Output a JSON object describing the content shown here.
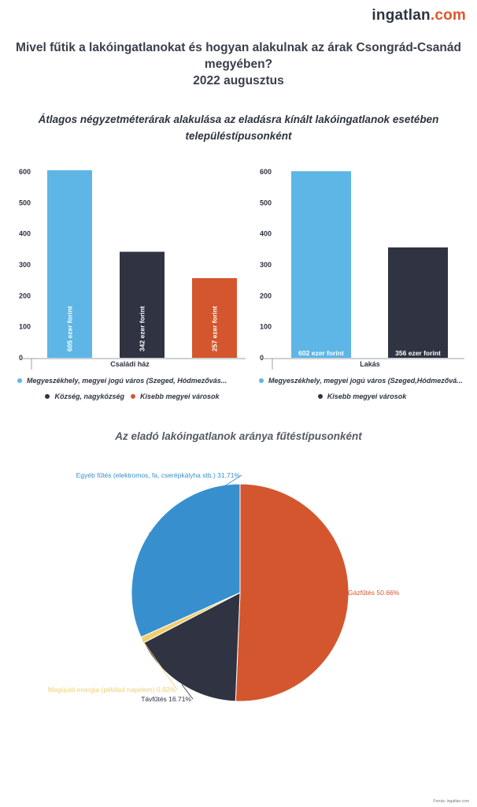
{
  "logo": {
    "part1": "ingatlan",
    "part2": ".com"
  },
  "header": {
    "title_line1": "Mivel fűtik a lakóingatlanokat és hogyan alakulnak az árak Csongrád-Csanád",
    "title_line2": "megyében?",
    "title_line3": "2022 augusztus"
  },
  "bar_section": {
    "subtitle_line1": "Átlagos négyzetméterárak alakulása az eladásra kínált lakóingatlanok esetében",
    "subtitle_line2": "településtípusonként"
  },
  "pie_section": {
    "title": "Az eladó lakóingatlanok aránya fűtéstípusonként"
  },
  "colors": {
    "blue": "#5eb6e6",
    "dark": "#2f3342",
    "orange": "#d4562e",
    "pie_blue": "#3790cd",
    "yellow": "#f2ce6b"
  },
  "chart_data": [
    {
      "type": "bar",
      "title": "",
      "xlabel": "Családi ház",
      "ylabel": "",
      "ylim": [
        0,
        650
      ],
      "yticks": [
        "0",
        "100",
        "200",
        "300",
        "400",
        "500",
        "600"
      ],
      "grid": false,
      "legend_position": "bottom",
      "series": [
        {
          "name": "Megyeszékhely, megyei jogú város (Szeged, Hódmezővás...",
          "value": 605,
          "label": "605 ezer forint",
          "color": "#5eb6e6"
        },
        {
          "name": "Község, nagyközség",
          "value": 342,
          "label": "342 ezer forint",
          "color": "#2f3342"
        },
        {
          "name": "Kisebb megyei városok",
          "value": 257,
          "label": "257 ezer forint",
          "color": "#d4562e"
        }
      ]
    },
    {
      "type": "bar",
      "title": "",
      "xlabel": "Lakás",
      "ylabel": "",
      "ylim": [
        0,
        650
      ],
      "yticks": [
        "0",
        "100",
        "200",
        "300",
        "400",
        "500",
        "600"
      ],
      "grid": false,
      "legend_position": "bottom",
      "series": [
        {
          "name": "Megyeszékhely, megyei jogú város (Szeged,Hódmezővá...",
          "value": 602,
          "label": "602 ezer forint",
          "color": "#5eb6e6"
        },
        {
          "name": "Kisebb megyei városok",
          "value": 356,
          "label": "356 ezer forint",
          "color": "#2f3342"
        }
      ]
    },
    {
      "type": "pie",
      "title": "Az eladó lakóingatlanok aránya fűtéstípusonként",
      "slices": [
        {
          "name": "Gázfűtés",
          "value": 50.66,
          "label": "Gázfűtés 50.66%",
          "color": "#d4562e"
        },
        {
          "name": "Távfűtés",
          "value": 16.71,
          "label": "Távfűtés 16.71%",
          "color": "#2f3342"
        },
        {
          "name": "Megújuló energia (például napelem)",
          "value": 0.92,
          "label": "Megújuló energia (például napelem) 0.92%",
          "color": "#f2ce6b"
        },
        {
          "name": "Egyéb fűtés (elektromos, fa, cserépkályha stb.)",
          "value": 31.71,
          "label": "Egyéb fűtés (elektromos, fa, cserépkályha stb.) 31.71%",
          "color": "#3790cd"
        }
      ]
    }
  ],
  "source": "Forrás: ingatlan.com"
}
